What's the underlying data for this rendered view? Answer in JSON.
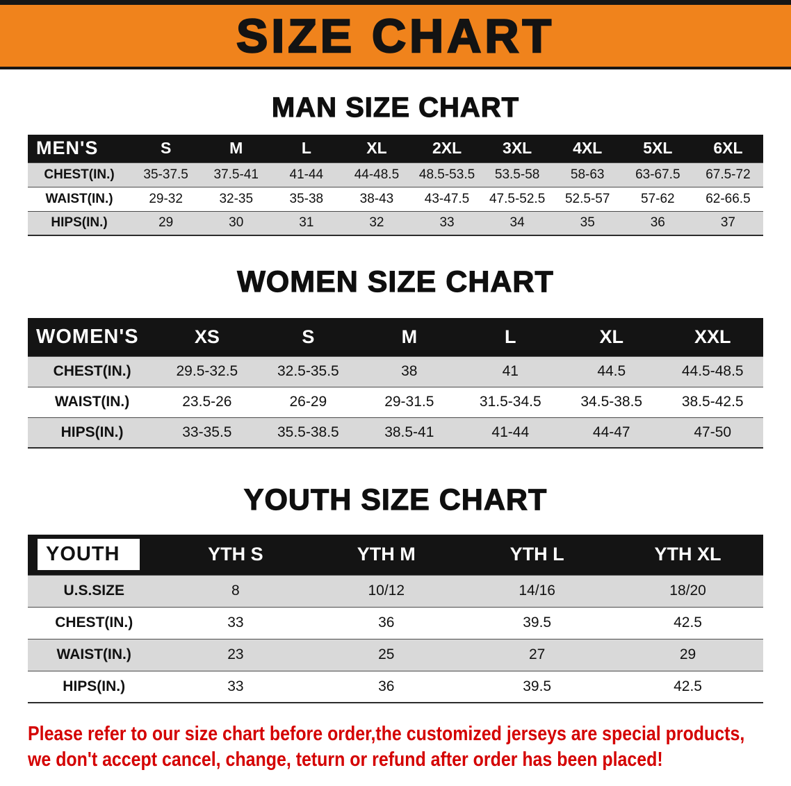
{
  "banner": {
    "title": "SIZE CHART"
  },
  "sections": [
    {
      "heading": "MAN SIZE CHART",
      "table": {
        "corner": "MEN'S",
        "columns": [
          "S",
          "M",
          "L",
          "XL",
          "2XL",
          "3XL",
          "4XL",
          "5XL",
          "6XL"
        ],
        "rows": [
          {
            "label": "CHEST(IN.)",
            "values": [
              "35-37.5",
              "37.5-41",
              "41-44",
              "44-48.5",
              "48.5-53.5",
              "53.5-58",
              "58-63",
              "63-67.5",
              "67.5-72"
            ]
          },
          {
            "label": "WAIST(IN.)",
            "values": [
              "29-32",
              "32-35",
              "35-38",
              "38-43",
              "43-47.5",
              "47.5-52.5",
              "52.5-57",
              "57-62",
              "62-66.5"
            ]
          },
          {
            "label": "HIPS(IN.)",
            "values": [
              "29",
              "30",
              "31",
              "32",
              "33",
              "34",
              "35",
              "36",
              "37"
            ]
          }
        ]
      }
    },
    {
      "heading": "WOMEN SIZE CHART",
      "table": {
        "corner": "WOMEN'S",
        "columns": [
          "XS",
          "S",
          "M",
          "L",
          "XL",
          "XXL"
        ],
        "rows": [
          {
            "label": "CHEST(IN.)",
            "values": [
              "29.5-32.5",
              "32.5-35.5",
              "38",
              "41",
              "44.5",
              "44.5-48.5"
            ]
          },
          {
            "label": "WAIST(IN.)",
            "values": [
              "23.5-26",
              "26-29",
              "29-31.5",
              "31.5-34.5",
              "34.5-38.5",
              "38.5-42.5"
            ]
          },
          {
            "label": "HIPS(IN.)",
            "values": [
              "33-35.5",
              "35.5-38.5",
              "38.5-41",
              "41-44",
              "44-47",
              "47-50"
            ]
          }
        ]
      }
    },
    {
      "heading": "YOUTH SIZE CHART",
      "table": {
        "corner": "YOUTH",
        "columns": [
          "YTH S",
          "YTH M",
          "YTH L",
          "YTH XL"
        ],
        "rows": [
          {
            "label": "U.S.SIZE",
            "values": [
              "8",
              "10/12",
              "14/16",
              "18/20"
            ]
          },
          {
            "label": "CHEST(IN.)",
            "values": [
              "33",
              "36",
              "39.5",
              "42.5"
            ]
          },
          {
            "label": "WAIST(IN.)",
            "values": [
              "23",
              "25",
              "27",
              "29"
            ]
          },
          {
            "label": "HIPS(IN.)",
            "values": [
              "33",
              "36",
              "39.5",
              "42.5"
            ]
          }
        ]
      }
    }
  ],
  "footer": {
    "line1": "Please refer to our size chart before order,the customized jerseys are special products,",
    "line2": "we don't accept cancel, change, teturn or refund after order has been placed!"
  },
  "colors": {
    "banner_orange": "#f0831c",
    "header_black": "#141414",
    "row_gray": "#d9d9d9",
    "notice_red": "#d40000"
  }
}
